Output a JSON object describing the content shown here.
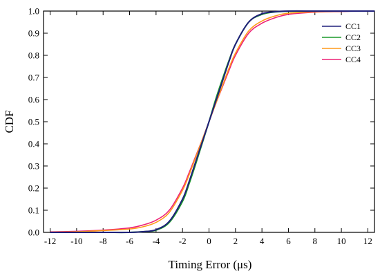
{
  "chart_data": {
    "type": "line",
    "title": "",
    "xlabel": "Timing Error (μs)",
    "ylabel": "CDF",
    "xlim": [
      -12.5,
      12.5
    ],
    "ylim": [
      0,
      1
    ],
    "xticks": [
      -12,
      -10,
      -8,
      -6,
      -4,
      -2,
      0,
      2,
      4,
      6,
      8,
      10,
      12
    ],
    "yticks": [
      0.0,
      0.1,
      0.2,
      0.3,
      0.4,
      0.5,
      0.6,
      0.7,
      0.8,
      0.9,
      1.0
    ],
    "ytick_labels": [
      "0.0",
      "0.1",
      "0.2",
      "0.3",
      "0.4",
      "0.5",
      "0.6",
      "0.7",
      "0.8",
      "0.9",
      "1.0"
    ],
    "grid": false,
    "legend_position": "top-right",
    "x": [
      -12,
      -10,
      -8,
      -6,
      -5,
      -4,
      -3,
      -2,
      -1.5,
      -1,
      -0.5,
      0,
      0.5,
      1,
      1.5,
      2,
      3,
      4,
      5,
      6,
      8,
      10,
      12,
      12.5
    ],
    "series": [
      {
        "name": "CC1",
        "color": "#1f1f7a",
        "values": [
          0.0,
          0.0,
          0.0,
          0.0,
          0.003,
          0.012,
          0.05,
          0.15,
          0.23,
          0.32,
          0.41,
          0.5,
          0.59,
          0.68,
          0.77,
          0.85,
          0.95,
          0.988,
          0.997,
          1.0,
          1.0,
          1.0,
          1.0,
          1.0
        ]
      },
      {
        "name": "CC2",
        "color": "#1a9a2a",
        "values": [
          0.0,
          0.0,
          0.0,
          0.0,
          0.003,
          0.01,
          0.045,
          0.14,
          0.22,
          0.31,
          0.405,
          0.5,
          0.6,
          0.69,
          0.775,
          0.85,
          0.95,
          0.985,
          0.996,
          0.999,
          1.0,
          1.0,
          1.0,
          1.0
        ]
      },
      {
        "name": "CC3",
        "color": "#ff9a1a",
        "values": [
          0.001,
          0.003,
          0.008,
          0.015,
          0.025,
          0.045,
          0.09,
          0.19,
          0.26,
          0.34,
          0.42,
          0.5,
          0.58,
          0.66,
          0.74,
          0.81,
          0.91,
          0.955,
          0.978,
          0.99,
          0.997,
          0.999,
          1.0,
          1.0
        ]
      },
      {
        "name": "CC4",
        "color": "#ee2277",
        "values": [
          0.002,
          0.005,
          0.01,
          0.02,
          0.033,
          0.055,
          0.1,
          0.2,
          0.27,
          0.345,
          0.42,
          0.5,
          0.58,
          0.655,
          0.73,
          0.8,
          0.9,
          0.945,
          0.97,
          0.985,
          0.995,
          0.998,
          1.0,
          1.0
        ]
      }
    ]
  }
}
